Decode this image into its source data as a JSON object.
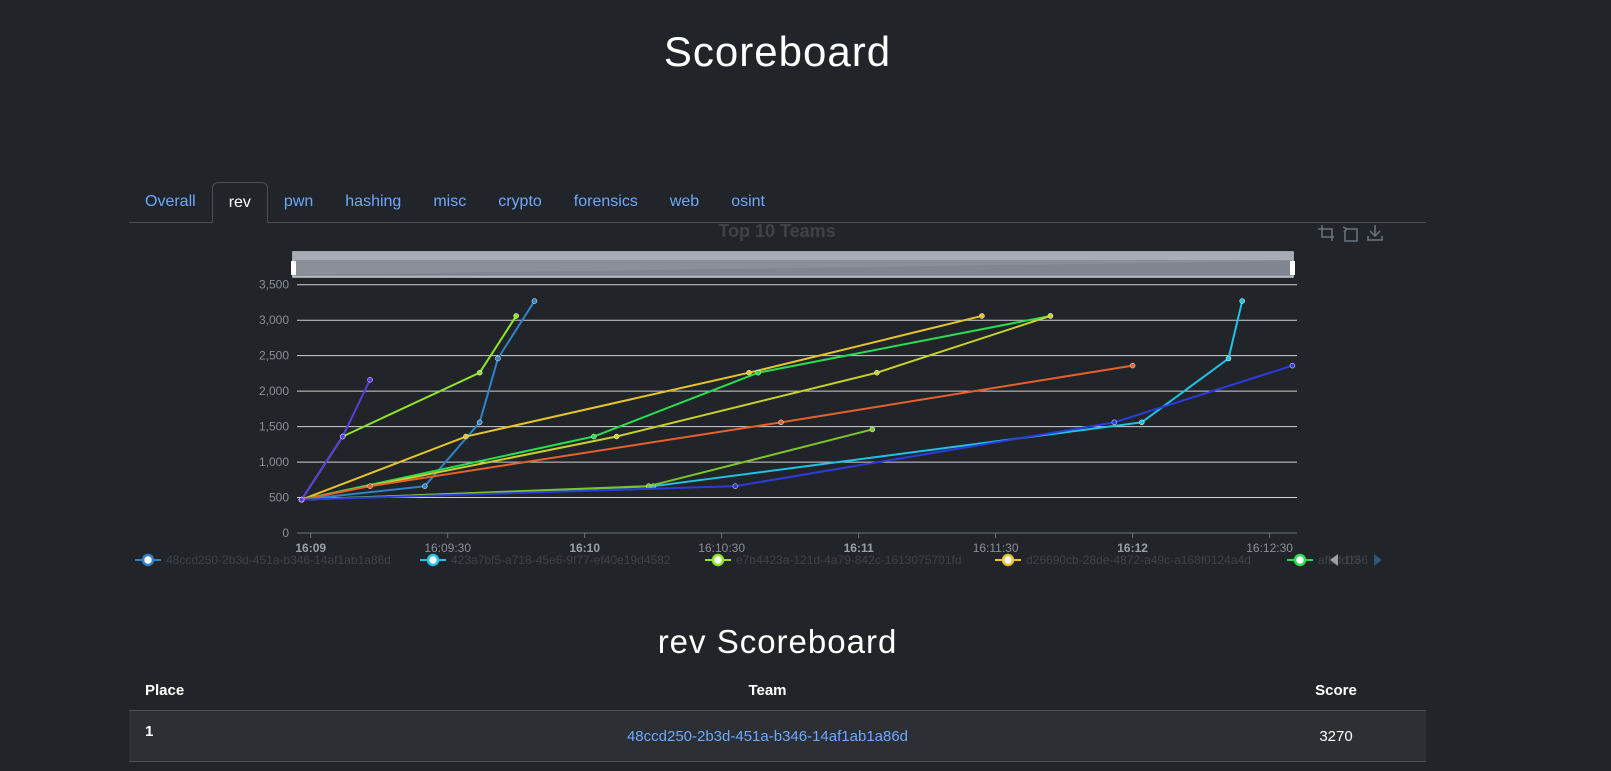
{
  "page": {
    "title": "Scoreboard"
  },
  "tabs": [
    "Overall",
    "rev",
    "pwn",
    "hashing",
    "misc",
    "crypto",
    "forensics",
    "web",
    "osint"
  ],
  "active_tab": 1,
  "colors": {
    "background": "#212529",
    "link": "#6ea8fe",
    "grid": "#d0d0d0"
  },
  "toolbar_icons": [
    "zoom-icon",
    "zoom-reset-icon",
    "download-icon"
  ],
  "legend": {
    "page_indicator": "1/3",
    "items": [
      {
        "name": "48ccd250-2b3d-451a-b346-14af1ab1a86d",
        "color": "#2f83c8"
      },
      {
        "name": "423a7bf5-a718-45e6-9f77-ef40e19d4582",
        "color": "#1ec3e6"
      },
      {
        "name": "e7b4423a-121d-4a79-842c-1613075701fd",
        "color": "#8fe32a"
      },
      {
        "name": "d26690cb-28de-4872-a49c-a168f0124a4d",
        "color": "#e6c32a"
      },
      {
        "name": "afbdd166",
        "color": "#2adc4f"
      }
    ]
  },
  "chart_data": {
    "type": "line",
    "title": "Top 10 Teams",
    "xlim": [
      "16:09",
      "16:12:30"
    ],
    "ylim": [
      0,
      3750
    ],
    "x_ticks": [
      "16:09",
      "16:09:30",
      "16:10",
      "16:10:30",
      "16:11",
      "16:11:30",
      "16:12",
      "16:12:30"
    ],
    "y_ticks": [
      "0",
      "500",
      "1,000",
      "1,500",
      "2,000",
      "2,500",
      "3,000",
      "3,500"
    ],
    "grid": true,
    "series": [
      {
        "name": "48ccd250-2b3d-451a-b346-14af1ab1a86d",
        "color": "#2f83c8",
        "points": [
          [
            "16:08:58",
            470
          ],
          [
            "16:09:25",
            660
          ],
          [
            "16:09:37",
            1560
          ],
          [
            "16:09:41",
            2460
          ],
          [
            "16:09:49",
            3270
          ]
        ]
      },
      {
        "name": "423a7bf5-a718-45e6-9f77-ef40e19d4582",
        "color": "#1ec3e6",
        "points": [
          [
            "16:08:58",
            470
          ],
          [
            "16:10:15",
            660
          ],
          [
            "16:12:02",
            1560
          ],
          [
            "16:12:21",
            2460
          ],
          [
            "16:12:24",
            3270
          ]
        ]
      },
      {
        "name": "e7b4423a-121d-4a79-842c-1613075701fd",
        "color": "#8fe32a",
        "points": [
          [
            "16:08:58",
            470
          ],
          [
            "16:09:07",
            1360
          ],
          [
            "16:09:37",
            2260
          ],
          [
            "16:09:45",
            3060
          ]
        ]
      },
      {
        "name": "d26690cb-28de-4872-a49c-a168f0124a4d",
        "color": "#e6c32a",
        "points": [
          [
            "16:08:58",
            470
          ],
          [
            "16:09:34",
            1360
          ],
          [
            "16:10:36",
            2260
          ],
          [
            "16:11:27",
            3060
          ]
        ]
      },
      {
        "name": "afbdd166",
        "color": "#2adc4f",
        "points": [
          [
            "16:08:58",
            470
          ],
          [
            "16:10:02",
            1360
          ],
          [
            "16:10:38",
            2260
          ],
          [
            "16:11:42",
            3060
          ]
        ]
      },
      {
        "name": "",
        "color": "#c8d02a",
        "points": [
          [
            "16:08:58",
            470
          ],
          [
            "16:10:07",
            1360
          ],
          [
            "16:11:04",
            2260
          ],
          [
            "16:11:42",
            3060
          ]
        ]
      },
      {
        "name": "",
        "color": "#e8602a",
        "points": [
          [
            "16:08:58",
            470
          ],
          [
            "16:09:13",
            660
          ],
          [
            "16:10:43",
            1560
          ],
          [
            "16:12:00",
            2360
          ]
        ]
      },
      {
        "name": "",
        "color": "#7cc42a",
        "points": [
          [
            "16:08:58",
            470
          ],
          [
            "16:10:14",
            660
          ],
          [
            "16:11:03",
            1460
          ]
        ]
      },
      {
        "name": "",
        "color": "#2a3ce0",
        "points": [
          [
            "16:08:58",
            470
          ],
          [
            "16:10:33",
            660
          ],
          [
            "16:11:56",
            1560
          ],
          [
            "16:12:35",
            2360
          ]
        ]
      },
      {
        "name": "",
        "color": "#5a3ae0",
        "points": [
          [
            "16:08:58",
            470
          ],
          [
            "16:09:07",
            1360
          ],
          [
            "16:09:13",
            2160
          ]
        ]
      }
    ]
  },
  "section": {
    "title": "rev Scoreboard"
  },
  "table": {
    "headers": {
      "place": "Place",
      "team": "Team",
      "score": "Score"
    },
    "rows": [
      {
        "place": "1",
        "team": "48ccd250-2b3d-451a-b346-14af1ab1a86d",
        "score": "3270"
      }
    ]
  }
}
